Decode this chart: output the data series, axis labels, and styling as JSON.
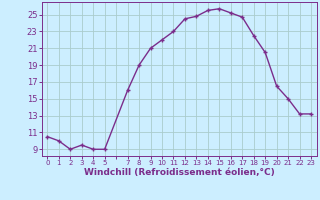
{
  "x": [
    0,
    1,
    2,
    3,
    4,
    5,
    7,
    8,
    9,
    10,
    11,
    12,
    13,
    14,
    15,
    16,
    17,
    18,
    19,
    20,
    21,
    22,
    23
  ],
  "y": [
    10.5,
    10.0,
    9.0,
    9.5,
    9.0,
    9.0,
    16.0,
    19.0,
    21.0,
    22.0,
    23.0,
    24.5,
    24.8,
    25.5,
    25.7,
    25.2,
    24.7,
    22.5,
    20.5,
    16.5,
    15.0,
    13.2,
    13.2
  ],
  "line_color": "#7b2d8b",
  "marker": "P",
  "bg_color": "#cceeff",
  "grid_color": "#aacccc",
  "xlabel": "Windchill (Refroidissement éolien,°C)",
  "ytick_positions": [
    9,
    11,
    13,
    15,
    17,
    19,
    21,
    23,
    25
  ],
  "ytick_labels": [
    "9",
    "11",
    "13",
    "15",
    "17",
    "19",
    "21",
    "23",
    "25"
  ],
  "xtick_labels": [
    "0",
    "1",
    "2",
    "3",
    "4",
    "5",
    "",
    "7",
    "8",
    "9",
    "10",
    "11",
    "12",
    "13",
    "14",
    "15",
    "16",
    "17",
    "18",
    "19",
    "20",
    "21",
    "22",
    "23"
  ],
  "xtick_positions": [
    0,
    1,
    2,
    3,
    4,
    5,
    6,
    7,
    8,
    9,
    10,
    11,
    12,
    13,
    14,
    15,
    16,
    17,
    18,
    19,
    20,
    21,
    22,
    23
  ],
  "ylim": [
    8.2,
    26.5
  ],
  "xlim": [
    -0.5,
    23.5
  ],
  "spine_color": "#7b2d8b",
  "tick_color": "#7b2d8b",
  "label_color": "#7b2d8b",
  "ytick_fontsize": 6,
  "xtick_fontsize": 5,
  "xlabel_fontsize": 6.5,
  "linewidth": 1.0,
  "markersize": 3.5
}
